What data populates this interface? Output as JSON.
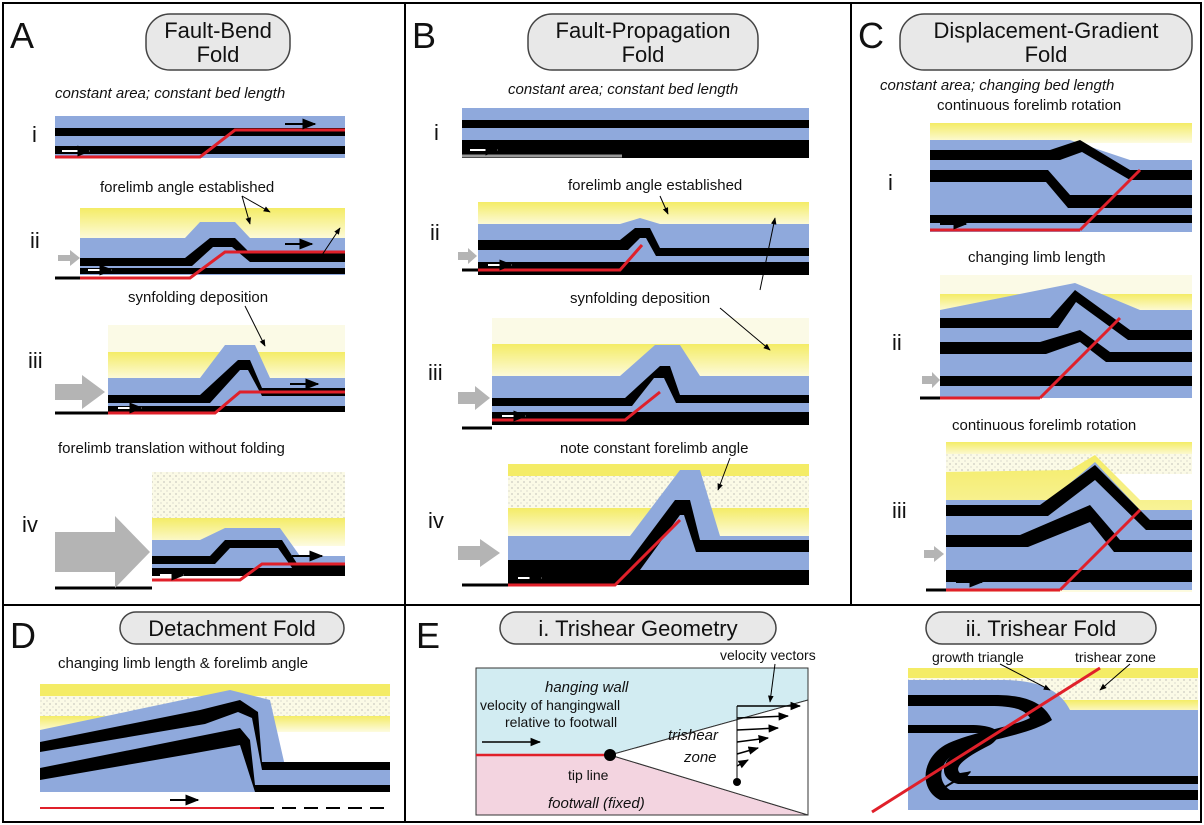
{
  "panels": {
    "A": {
      "letter": "A",
      "title_1": "Fault-Bend",
      "title_2": "Fold",
      "subtitle": "constant area; constant bed length",
      "stages": [
        "i",
        "ii",
        "iii",
        "iv"
      ],
      "notes": [
        "forelimb angle established",
        "synfolding deposition",
        "forelimb translation without folding"
      ]
    },
    "B": {
      "letter": "B",
      "title_1": "Fault-Propagation",
      "title_2": "Fold",
      "subtitle": "constant area; constant bed length",
      "stages": [
        "i",
        "ii",
        "iii",
        "iv"
      ],
      "notes": [
        "forelimb angle established",
        "synfolding deposition",
        "note constant forelimb angle"
      ]
    },
    "C": {
      "letter": "C",
      "title_1": "Displacement-Gradient",
      "title_2": "Fold",
      "subtitle": "constant area; changing bed length",
      "stages": [
        "i",
        "ii",
        "iii"
      ],
      "notes": [
        "continuous forelimb rotation",
        "changing limb length",
        "continuous forelimb rotation"
      ]
    },
    "D": {
      "letter": "D",
      "title": "Detachment Fold",
      "note": "changing limb length & forelimb angle"
    },
    "E": {
      "letter": "E",
      "title": "i. Trishear Geometry",
      "labels": {
        "hanging_wall": "hanging wall",
        "velocity_vectors": "velocity vectors",
        "velocity_hw_1": "velocity of hangingwall",
        "velocity_hw_2": "relative to footwall",
        "trishear_1": "trishear",
        "trishear_2": "zone",
        "tip_line": "tip line",
        "footwall": "footwall (fixed)"
      }
    },
    "F": {
      "title": "ii. Trishear Fold",
      "labels": {
        "growth_triangle": "growth triangle",
        "trishear_zone": "trishear zone"
      }
    }
  },
  "colors": {
    "blue": "#8fa9dc",
    "black": "#000000",
    "yellow": "#f5ee7a",
    "pale_yellow": "#fbf7c9",
    "fault": "#e0202a",
    "arrow_gray": "#b4b4b4",
    "hanging_wall": "#d2ecf2",
    "footwall": "#f3d4e0"
  }
}
